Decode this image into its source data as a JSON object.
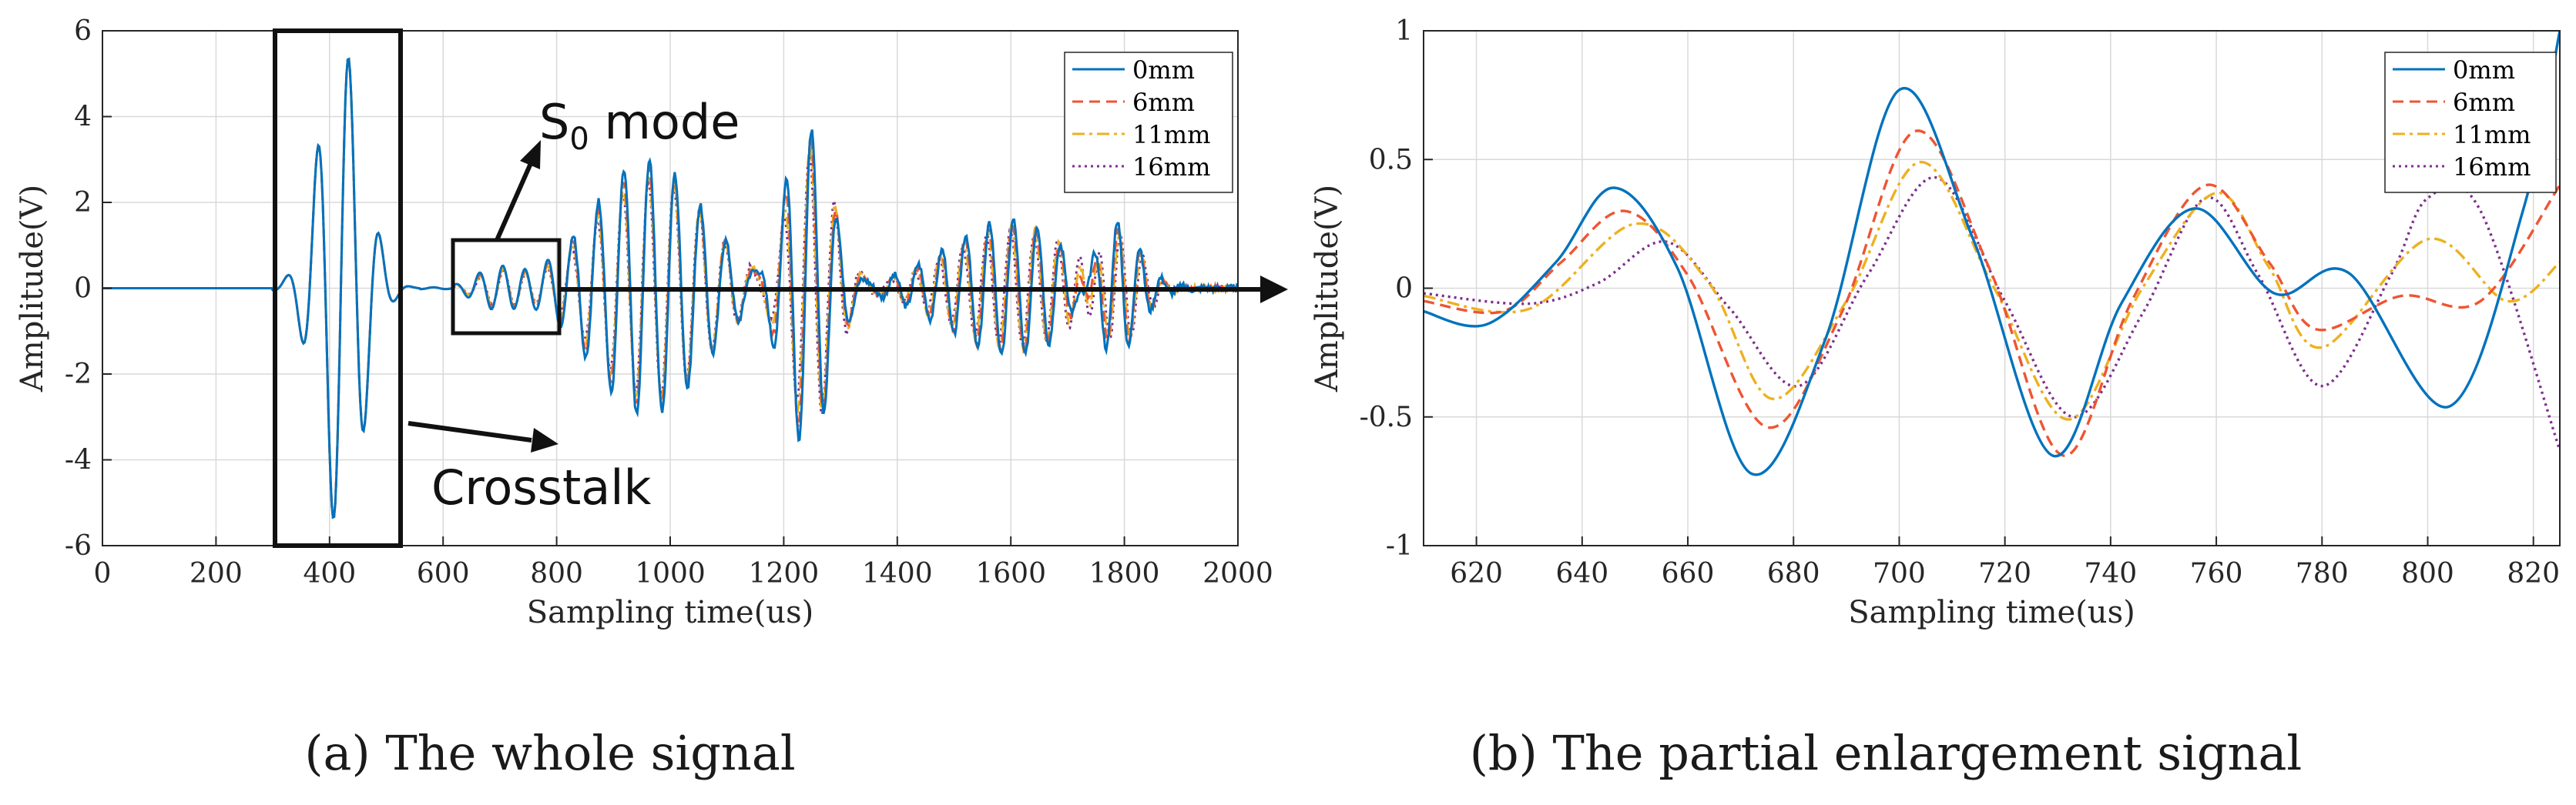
{
  "chart_data": [
    {
      "id": "a",
      "type": "line",
      "caption": "(a) The whole signal",
      "xlabel": "Sampling time(us)",
      "ylabel": "Amplitude(V)",
      "xlim": [
        0,
        2000
      ],
      "ylim": [
        -6,
        6
      ],
      "xticks": [
        0,
        200,
        400,
        600,
        800,
        1000,
        1200,
        1400,
        1600,
        1800,
        2000
      ],
      "yticks": [
        6,
        4,
        2,
        0,
        -2,
        -4,
        -6
      ],
      "grid": true,
      "legend_position": "top-right",
      "series": [
        {
          "name": "0mm",
          "color": "#0072BD",
          "dash": "solid"
        },
        {
          "name": "6mm",
          "color": "#EE5533",
          "dash": "dashed"
        },
        {
          "name": "11mm",
          "color": "#EDB120",
          "dash": "dashdot"
        },
        {
          "name": "16mm",
          "color": "#7E2F8E",
          "dash": "dotted"
        }
      ],
      "annotations": {
        "s0_mode_prefix": "S",
        "s0_mode_sub": "0",
        "s0_mode_suffix": " mode",
        "crosstalk": "Crosstalk"
      }
    },
    {
      "id": "b",
      "type": "line",
      "caption": "(b) The partial enlargement signal",
      "xlabel": "Sampling time(us)",
      "ylabel": "Amplitude(V)",
      "xlim": [
        610,
        825
      ],
      "ylim": [
        -1,
        1
      ],
      "xticks": [
        620,
        640,
        660,
        680,
        700,
        720,
        740,
        760,
        780,
        800,
        820
      ],
      "yticks": [
        1,
        0.5,
        0,
        -0.5,
        -1
      ],
      "grid": true,
      "legend_position": "top-right",
      "series": [
        {
          "name": "0mm",
          "color": "#0072BD",
          "dash": "solid",
          "points": [
            [
              610,
              -0.09
            ],
            [
              622,
              -0.14
            ],
            [
              635,
              0.1
            ],
            [
              646,
              0.39
            ],
            [
              658,
              0.08
            ],
            [
              672,
              -0.72
            ],
            [
              686,
              -0.2
            ],
            [
              700,
              0.77
            ],
            [
              714,
              0.19
            ],
            [
              729,
              -0.65
            ],
            [
              742,
              -0.06
            ],
            [
              756,
              0.31
            ],
            [
              771,
              -0.02
            ],
            [
              785,
              0.06
            ],
            [
              804,
              -0.46
            ],
            [
              818,
              0.3
            ],
            [
              825,
              1.0
            ]
          ]
        },
        {
          "name": "6mm",
          "color": "#EE5533",
          "dash": "dashed",
          "points": [
            [
              610,
              -0.05
            ],
            [
              625,
              -0.09
            ],
            [
              636,
              0.1
            ],
            [
              648,
              0.3
            ],
            [
              660,
              0.05
            ],
            [
              675,
              -0.54
            ],
            [
              689,
              -0.1
            ],
            [
              703,
              0.61
            ],
            [
              717,
              0.08
            ],
            [
              731,
              -0.65
            ],
            [
              744,
              -0.05
            ],
            [
              758,
              0.4
            ],
            [
              770,
              0.1
            ],
            [
              779,
              -0.16
            ],
            [
              795,
              -0.03
            ],
            [
              810,
              -0.05
            ],
            [
              825,
              0.4
            ]
          ]
        },
        {
          "name": "11mm",
          "color": "#EDB120",
          "dash": "dashdot",
          "points": [
            [
              610,
              -0.03
            ],
            [
              630,
              -0.08
            ],
            [
              650,
              0.25
            ],
            [
              664,
              0.02
            ],
            [
              676,
              -0.43
            ],
            [
              690,
              -0.05
            ],
            [
              704,
              0.49
            ],
            [
              718,
              0.0
            ],
            [
              732,
              -0.51
            ],
            [
              746,
              0.0
            ],
            [
              760,
              0.37
            ],
            [
              770,
              0.08
            ],
            [
              780,
              -0.23
            ],
            [
              800,
              0.19
            ],
            [
              815,
              -0.05
            ],
            [
              825,
              0.1
            ]
          ]
        },
        {
          "name": "16mm",
          "color": "#7E2F8E",
          "dash": "dotted",
          "points": [
            [
              610,
              -0.02
            ],
            [
              630,
              -0.06
            ],
            [
              643,
              0.02
            ],
            [
              656,
              0.18
            ],
            [
              668,
              -0.08
            ],
            [
              681,
              -0.38
            ],
            [
              694,
              0.05
            ],
            [
              707,
              0.43
            ],
            [
              720,
              -0.05
            ],
            [
              733,
              -0.5
            ],
            [
              746,
              -0.1
            ],
            [
              758,
              0.35
            ],
            [
              768,
              0.05
            ],
            [
              780,
              -0.38
            ],
            [
              793,
              0.05
            ],
            [
              800,
              0.35
            ],
            [
              810,
              0.3
            ],
            [
              825,
              -0.63
            ]
          ]
        }
      ]
    }
  ]
}
